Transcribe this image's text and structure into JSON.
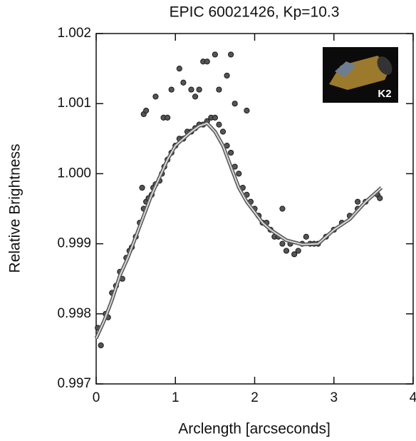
{
  "chart_data": {
    "type": "scatter",
    "title": "EPIC 60021426, Kp=10.3",
    "x_label": "Arclength [arcseconds]",
    "y_label": "Relative Brightness",
    "annotation": "K2",
    "xlim": [
      0,
      4
    ],
    "ylim": [
      0.997,
      1.002
    ],
    "xticks": [
      0,
      1,
      2,
      3,
      4
    ],
    "yticks": [
      0.997,
      0.998,
      0.999,
      {
        "value": 1,
        "label": "1.000"
      },
      1.001,
      1.002
    ],
    "points": {
      "color": "#555555",
      "x": [
        0.02,
        0.06,
        0.12,
        0.15,
        0.2,
        0.25,
        0.3,
        0.33,
        0.38,
        0.42,
        0.45,
        0.5,
        0.55,
        0.58,
        0.6,
        0.63,
        0.66,
        0.7,
        0.72,
        0.75,
        0.8,
        0.83,
        0.86,
        0.9,
        0.95,
        1.0,
        1.05,
        1.1,
        1.15,
        1.2,
        1.25,
        1.3,
        1.35,
        1.4,
        1.45,
        1.5,
        1.55,
        1.6,
        1.65,
        1.7,
        1.75,
        1.8,
        1.85,
        1.9,
        1.95,
        2.0,
        2.05,
        2.1,
        2.15,
        2.2,
        2.25,
        2.3,
        2.35,
        2.4,
        2.45,
        2.5,
        2.55,
        2.6,
        2.65,
        2.7,
        2.75,
        2.8,
        2.9,
        3.0,
        3.1,
        3.2,
        3.3,
        3.4,
        3.55,
        3.58,
        0.6,
        0.63,
        0.75,
        0.85,
        0.9,
        0.95,
        1.05,
        1.1,
        1.2,
        1.25,
        1.3,
        1.35,
        1.4,
        1.5,
        1.55,
        1.65,
        1.7,
        1.75,
        1.9,
        2.05,
        2.35,
        3.3
      ],
      "y": [
        0.9978,
        0.99755,
        0.998,
        0.99795,
        0.9983,
        0.9984,
        0.9986,
        0.9985,
        0.9988,
        0.9989,
        0.99895,
        0.9991,
        0.9993,
        0.9998,
        0.9995,
        0.9996,
        0.99965,
        0.9997,
        0.9998,
        0.99985,
        0.9999,
        1.0,
        1.0001,
        1.0002,
        1.0003,
        1.0004,
        1.0005,
        1.0005,
        1.0006,
        1.0006,
        1.00065,
        1.0007,
        1.0007,
        1.00075,
        1.0008,
        1.0008,
        1.0007,
        1.0006,
        1.0004,
        1.0003,
        1.0001,
        1.0,
        0.9998,
        0.9997,
        0.9996,
        0.9995,
        0.9994,
        0.9993,
        0.9993,
        0.9992,
        0.9991,
        0.9991,
        0.999,
        0.9989,
        0.999,
        0.99885,
        0.9989,
        0.999,
        0.9991,
        0.999,
        0.999,
        0.999,
        0.9991,
        0.9992,
        0.9993,
        0.9994,
        0.9995,
        0.9996,
        0.9997,
        0.99965,
        1.00085,
        1.0009,
        1.0011,
        1.0008,
        1.0008,
        1.0012,
        1.0015,
        1.0013,
        1.0012,
        1.0011,
        1.0012,
        1.0016,
        1.0016,
        1.0017,
        1.0012,
        1.0014,
        1.0017,
        1.001,
        1.0009,
        0.9994,
        0.9995,
        0.9996
      ]
    },
    "fit": {
      "color": "#d8d8d8",
      "x": [
        0,
        0.1,
        0.2,
        0.3,
        0.4,
        0.5,
        0.6,
        0.7,
        0.8,
        0.9,
        1.0,
        1.1,
        1.2,
        1.3,
        1.4,
        1.5,
        1.6,
        1.7,
        1.8,
        1.9,
        2.0,
        2.1,
        2.2,
        2.4,
        2.6,
        2.8,
        3.0,
        3.2,
        3.4,
        3.6
      ],
      "y": [
        0.99765,
        0.9979,
        0.9982,
        0.99855,
        0.9988,
        0.9991,
        0.9994,
        0.9997,
        0.99995,
        1.0002,
        1.0004,
        1.0005,
        1.0006,
        1.00068,
        1.00072,
        1.0006,
        1.0004,
        1.0001,
        0.9998,
        0.9996,
        0.99945,
        0.9993,
        0.9992,
        0.99905,
        0.99899,
        0.999,
        0.9992,
        0.99935,
        0.9996,
        0.9998
      ]
    }
  }
}
